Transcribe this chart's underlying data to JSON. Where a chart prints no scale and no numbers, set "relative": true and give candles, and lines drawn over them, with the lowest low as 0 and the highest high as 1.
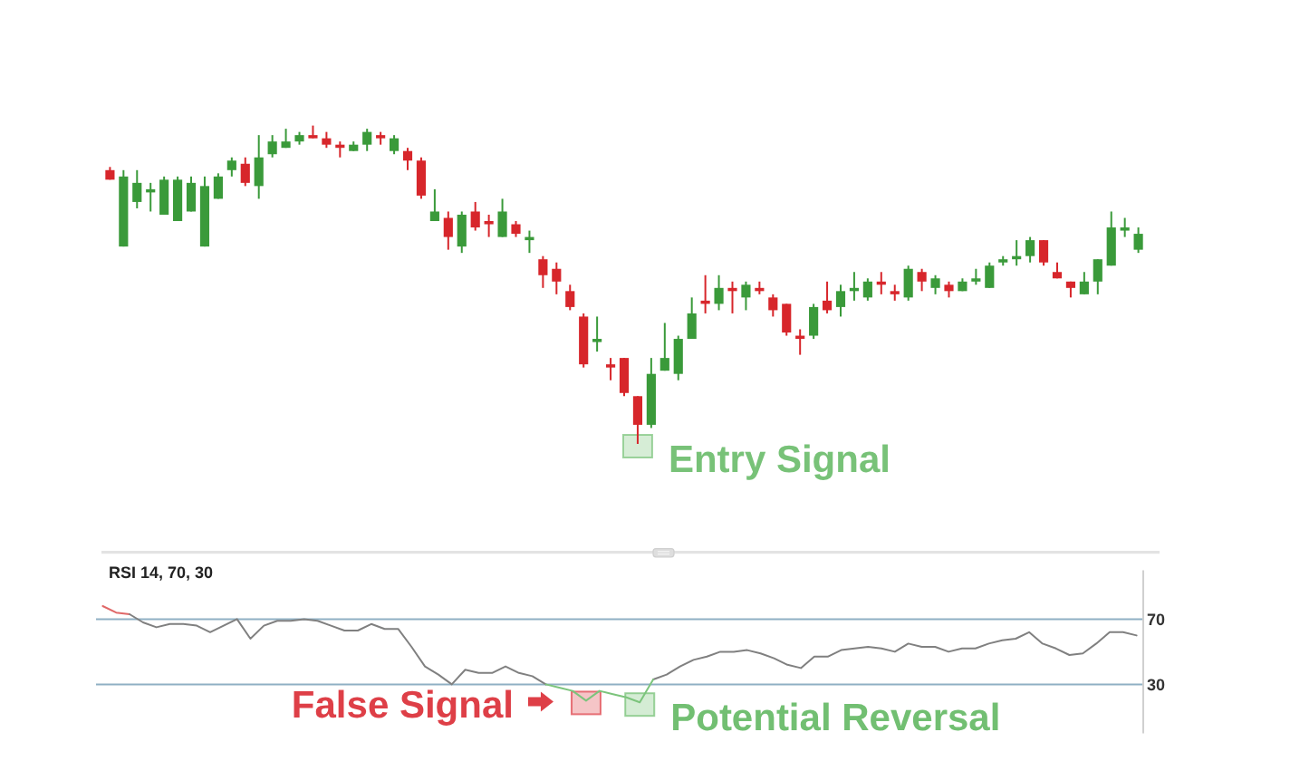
{
  "chart_data": [
    {
      "type": "candlestick",
      "relative": true,
      "tick_labels": false,
      "categories": [
        null,
        null,
        null,
        null,
        null,
        null,
        null,
        null,
        null,
        null,
        null,
        null,
        null,
        null,
        null,
        null,
        null,
        null,
        null,
        null,
        null,
        null,
        null,
        null,
        null,
        null,
        null,
        null,
        null,
        null,
        null,
        null,
        null,
        null,
        null,
        null,
        null,
        null,
        null,
        null,
        null,
        null,
        null,
        null,
        null,
        null,
        null,
        null,
        null,
        null,
        null,
        null,
        null,
        null,
        null,
        null,
        null,
        null,
        null,
        null,
        null,
        null,
        null,
        null,
        null,
        null,
        null,
        null,
        null,
        null,
        null,
        null,
        null,
        null,
        null,
        null,
        null
      ],
      "ohlc": [
        [
          0.86,
          0.87,
          0.83,
          0.83
        ],
        [
          0.62,
          0.86,
          0.62,
          0.84
        ],
        [
          0.76,
          0.86,
          0.74,
          0.82
        ],
        [
          0.79,
          0.82,
          0.73,
          0.8
        ],
        [
          0.72,
          0.84,
          0.72,
          0.83
        ],
        [
          0.7,
          0.84,
          0.7,
          0.83
        ],
        [
          0.73,
          0.84,
          0.73,
          0.82
        ],
        [
          0.62,
          0.84,
          0.62,
          0.81
        ],
        [
          0.77,
          0.85,
          0.77,
          0.84
        ],
        [
          0.86,
          0.9,
          0.84,
          0.89
        ],
        [
          0.88,
          0.9,
          0.81,
          0.82
        ],
        [
          0.81,
          0.97,
          0.77,
          0.9
        ],
        [
          0.91,
          0.97,
          0.9,
          0.95
        ],
        [
          0.93,
          0.99,
          0.93,
          0.95
        ],
        [
          0.95,
          0.98,
          0.94,
          0.97
        ],
        [
          0.97,
          1.0,
          0.96,
          0.96
        ],
        [
          0.96,
          0.98,
          0.93,
          0.94
        ],
        [
          0.94,
          0.95,
          0.9,
          0.93
        ],
        [
          0.92,
          0.95,
          0.92,
          0.94
        ],
        [
          0.94,
          0.99,
          0.92,
          0.98
        ],
        [
          0.97,
          0.98,
          0.94,
          0.96
        ],
        [
          0.92,
          0.97,
          0.91,
          0.96
        ],
        [
          0.92,
          0.93,
          0.86,
          0.89
        ],
        [
          0.89,
          0.9,
          0.77,
          0.78
        ],
        [
          0.7,
          0.8,
          0.7,
          0.73
        ],
        [
          0.71,
          0.73,
          0.61,
          0.65
        ],
        [
          0.62,
          0.73,
          0.6,
          0.72
        ],
        [
          0.73,
          0.76,
          0.67,
          0.68
        ],
        [
          0.7,
          0.72,
          0.65,
          0.69
        ],
        [
          0.65,
          0.77,
          0.65,
          0.73
        ],
        [
          0.69,
          0.7,
          0.65,
          0.66
        ],
        [
          0.64,
          0.67,
          0.6,
          0.65
        ],
        [
          0.58,
          0.59,
          0.49,
          0.53
        ],
        [
          0.55,
          0.57,
          0.47,
          0.51
        ],
        [
          0.48,
          0.5,
          0.42,
          0.43
        ],
        [
          0.4,
          0.41,
          0.24,
          0.25
        ],
        [
          0.32,
          0.4,
          0.29,
          0.33
        ],
        [
          0.25,
          0.27,
          0.2,
          0.24
        ],
        [
          0.27,
          0.27,
          0.15,
          0.16
        ],
        [
          0.15,
          0.15,
          0.0,
          0.06
        ],
        [
          0.06,
          0.27,
          0.05,
          0.22
        ],
        [
          0.23,
          0.38,
          0.23,
          0.27
        ],
        [
          0.22,
          0.34,
          0.2,
          0.33
        ],
        [
          0.33,
          0.46,
          0.33,
          0.41
        ],
        [
          0.45,
          0.53,
          0.41,
          0.44
        ],
        [
          0.44,
          0.53,
          0.42,
          0.49
        ],
        [
          0.49,
          0.51,
          0.41,
          0.48
        ],
        [
          0.46,
          0.51,
          0.42,
          0.5
        ],
        [
          0.49,
          0.51,
          0.47,
          0.48
        ],
        [
          0.46,
          0.47,
          0.4,
          0.42
        ],
        [
          0.44,
          0.44,
          0.34,
          0.35
        ],
        [
          0.34,
          0.36,
          0.28,
          0.33
        ],
        [
          0.34,
          0.44,
          0.33,
          0.43
        ],
        [
          0.45,
          0.51,
          0.41,
          0.42
        ],
        [
          0.43,
          0.5,
          0.4,
          0.48
        ],
        [
          0.48,
          0.54,
          0.45,
          0.49
        ],
        [
          0.46,
          0.52,
          0.45,
          0.51
        ],
        [
          0.51,
          0.54,
          0.47,
          0.5
        ],
        [
          0.48,
          0.5,
          0.45,
          0.47
        ],
        [
          0.46,
          0.56,
          0.45,
          0.55
        ],
        [
          0.54,
          0.55,
          0.48,
          0.51
        ],
        [
          0.49,
          0.53,
          0.47,
          0.52
        ],
        [
          0.5,
          0.51,
          0.46,
          0.48
        ],
        [
          0.48,
          0.52,
          0.48,
          0.51
        ],
        [
          0.51,
          0.55,
          0.5,
          0.52
        ],
        [
          0.49,
          0.57,
          0.49,
          0.56
        ],
        [
          0.57,
          0.59,
          0.56,
          0.58
        ],
        [
          0.58,
          0.64,
          0.56,
          0.59
        ],
        [
          0.59,
          0.65,
          0.57,
          0.64
        ],
        [
          0.64,
          0.64,
          0.56,
          0.57
        ],
        [
          0.54,
          0.57,
          0.52,
          0.52
        ],
        [
          0.51,
          0.51,
          0.46,
          0.49
        ],
        [
          0.47,
          0.54,
          0.47,
          0.51
        ],
        [
          0.51,
          0.58,
          0.47,
          0.58
        ],
        [
          0.56,
          0.73,
          0.56,
          0.68
        ],
        [
          0.67,
          0.71,
          0.65,
          0.68
        ],
        [
          0.61,
          0.68,
          0.6,
          0.66
        ]
      ],
      "colors": [
        "#d7262b",
        "#3a9a3a",
        "#3a9a3a",
        "#3a9a3a",
        "#3a9a3a",
        "#3a9a3a",
        "#3a9a3a",
        "#3a9a3a",
        "#3a9a3a",
        "#3a9a3a",
        "#d7262b",
        "#3a9a3a",
        "#3a9a3a",
        "#3a9a3a",
        "#3a9a3a",
        "#d7262b",
        "#d7262b",
        "#d7262b",
        "#3a9a3a",
        "#3a9a3a",
        "#d7262b",
        "#3a9a3a",
        "#d7262b",
        "#d7262b",
        "#3a9a3a",
        "#d7262b",
        "#3a9a3a",
        "#d7262b",
        "#d7262b",
        "#3a9a3a",
        "#d7262b",
        "#3a9a3a",
        "#d7262b",
        "#d7262b",
        "#d7262b",
        "#d7262b",
        "#3a9a3a",
        "#d7262b",
        "#d7262b",
        "#d7262b",
        "#3a9a3a",
        "#3a9a3a",
        "#3a9a3a",
        "#3a9a3a",
        "#d7262b",
        "#3a9a3a",
        "#d7262b",
        "#3a9a3a",
        "#d7262b",
        "#d7262b",
        "#d7262b",
        "#d7262b",
        "#3a9a3a",
        "#d7262b",
        "#3a9a3a",
        "#3a9a3a",
        "#3a9a3a",
        "#d7262b",
        "#d7262b",
        "#3a9a3a",
        "#d7262b",
        "#3a9a3a",
        "#d7262b",
        "#3a9a3a",
        "#3a9a3a",
        "#3a9a3a",
        "#3a9a3a",
        "#3a9a3a",
        "#3a9a3a",
        "#d7262b",
        "#d7262b",
        "#d7262b",
        "#3a9a3a",
        "#3a9a3a",
        "#3a9a3a",
        "#3a9a3a",
        "#3a9a3a"
      ],
      "annotations": [
        "Entry Signal"
      ]
    },
    {
      "type": "line",
      "title": "RSI 14, 70, 30",
      "tick_labels": "y",
      "categories": [
        null,
        null,
        null,
        null,
        null,
        null,
        null,
        null,
        null,
        null,
        null,
        null,
        null,
        null,
        null,
        null,
        null,
        null,
        null,
        null,
        null,
        null,
        null,
        null,
        null,
        null,
        null,
        null,
        null,
        null,
        null,
        null,
        null,
        null,
        null,
        null,
        null,
        null,
        null,
        null,
        null,
        null,
        null,
        null,
        null,
        null,
        null,
        null,
        null,
        null,
        null,
        null,
        null,
        null,
        null,
        null,
        null,
        null,
        null,
        null,
        null,
        null,
        null,
        null,
        null,
        null,
        null,
        null,
        null,
        null,
        null,
        null,
        null,
        null,
        null,
        null,
        null,
        null
      ],
      "series": [
        {
          "color": "#e06868",
          "values": [
            78,
            74,
            73,
            null,
            null,
            null,
            null,
            null,
            null,
            null,
            null,
            null,
            null,
            null,
            null,
            null,
            null,
            null,
            null,
            null,
            null,
            null,
            null,
            null,
            null,
            null,
            null,
            null,
            null,
            null,
            null,
            null,
            null,
            null,
            null,
            null,
            null,
            null,
            null,
            null,
            null,
            null,
            null,
            null,
            null,
            null,
            null,
            null,
            null,
            null,
            null,
            null,
            null,
            null,
            null,
            null,
            null,
            null,
            null,
            null,
            null,
            null,
            null,
            null,
            null,
            null,
            null,
            null,
            null,
            null,
            null,
            null,
            null,
            null,
            null,
            null,
            null,
            null
          ]
        },
        {
          "color": "#808080",
          "values": [
            null,
            null,
            73,
            68,
            65,
            67,
            67,
            66,
            62,
            66,
            70,
            58,
            66,
            69,
            69,
            70,
            69,
            66,
            63,
            63,
            67,
            64,
            64,
            53,
            41,
            36,
            30,
            39,
            37,
            37,
            41,
            37,
            35,
            30,
            null,
            null,
            null,
            null,
            null,
            null,
            null,
            33,
            36,
            41,
            45,
            47,
            50,
            50,
            51,
            49,
            46,
            42,
            40,
            47,
            47,
            51,
            52,
            53,
            52,
            50,
            55,
            53,
            53,
            50,
            52,
            52,
            55,
            57,
            58,
            62,
            55,
            52,
            48,
            49,
            55,
            62,
            62,
            60
          ]
        },
        {
          "color": "#7cc47c",
          "values": [
            null,
            null,
            null,
            null,
            null,
            null,
            null,
            null,
            null,
            null,
            null,
            null,
            null,
            null,
            null,
            null,
            null,
            null,
            null,
            null,
            null,
            null,
            null,
            null,
            null,
            null,
            null,
            null,
            null,
            null,
            null,
            null,
            null,
            30,
            28,
            26,
            20,
            26,
            24,
            22,
            19,
            33,
            null,
            null,
            null,
            null,
            null,
            null,
            null,
            null,
            null,
            null,
            null,
            null,
            null,
            null,
            null,
            null,
            null,
            null,
            null,
            null,
            null,
            null,
            null,
            null,
            null,
            null,
            null,
            null,
            null,
            null,
            null,
            null,
            null,
            null,
            null,
            null
          ]
        }
      ],
      "ylim": [
        0,
        100
      ],
      "yticks": [
        70,
        30
      ],
      "ref_lines": [
        {
          "axis": "y",
          "value": 70,
          "color": "#8fb0c4"
        },
        {
          "axis": "y",
          "value": 30,
          "color": "#8fb0c4"
        }
      ],
      "annotations": [
        "False Signal",
        "Potential Reversal"
      ]
    }
  ]
}
